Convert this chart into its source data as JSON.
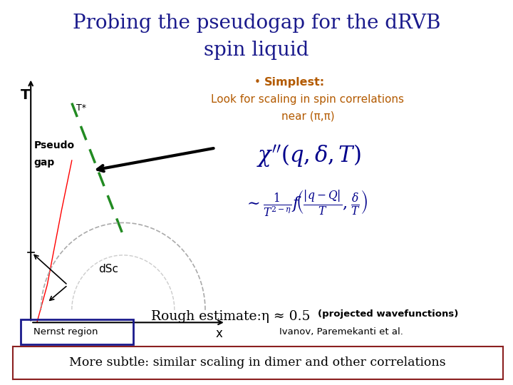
{
  "title_line1": "Probing the pseudogap for the dRVB",
  "title_line2": "spin liquid",
  "title_color": "#1a1a8c",
  "title_fontsize": 20,
  "bg_color": "#ffffff",
  "bullet_color": "#b35a00",
  "bullet_text": "Simplest:",
  "bullet_detail_line1": "Look for scaling in spin correlations",
  "bullet_detail_line2": "near (π,π)",
  "label_T": "T",
  "label_Tstar": "T*",
  "label_pseudogap_line1": "Pseudo",
  "label_pseudogap_line2": "gap",
  "label_dSc": "dSc",
  "label_x": "x",
  "label_nernst": "Nernst region",
  "rough_estimate_text": "Rough estimate:η ≈ 0.5",
  "rough_estimate_suffix": "(projected wavefunctions)",
  "citation": "Ivanov, Paremekanti et al.",
  "bottom_text": "More subtle: similar scaling in dimer and other correlations",
  "formula1": "$\\chi''(q, \\delta, T)$",
  "formula2": "$\\sim \\frac{1}{T^{2-\\eta}} f\\!\\left(\\frac{|q-Q|}{T}, \\frac{\\delta}{T}\\right)$",
  "nernst_box_color": "#1a1a8c",
  "bottom_box_color": "#8b2020"
}
